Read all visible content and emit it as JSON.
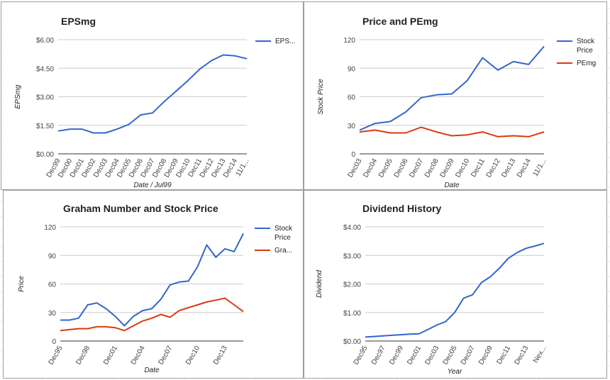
{
  "colors": {
    "blue": "#3366cc",
    "red": "#dc3912",
    "grid": "#cccccc",
    "axis": "#333333"
  },
  "chart_data": [
    {
      "type": "line",
      "title": "EPSmg",
      "xlabel": "Date / Jul99",
      "ylabel": "EPSmg",
      "ylim": [
        0,
        6
      ],
      "y_ticks": [
        "$0.00",
        "$1.50",
        "$3.00",
        "$4.50",
        "$6.00"
      ],
      "categories": [
        "Dec99",
        "Dec00",
        "Dec01",
        "Dec02",
        "Dec03",
        "Dec04",
        "Dec05",
        "Dec06",
        "Dec07",
        "Dec08",
        "Dec09",
        "Dec10",
        "Dec11",
        "Dec12",
        "Dec13",
        "Dec14",
        "11/1..."
      ],
      "x": [
        "Dec99",
        "Dec00",
        "Dec01",
        "Dec02",
        "Dec03",
        "Dec04",
        "Dec05",
        "Dec06",
        "Dec07",
        "Dec08",
        "Dec09",
        "Dec10",
        "Dec11",
        "Dec12",
        "Dec13",
        "Dec14",
        "11/1..."
      ],
      "series": [
        {
          "name": "EPS...",
          "color": "#3366cc",
          "values": [
            1.2,
            1.3,
            1.3,
            1.1,
            1.1,
            1.3,
            1.55,
            2.05,
            2.15,
            2.75,
            3.3,
            3.85,
            4.45,
            4.9,
            5.2,
            5.15,
            5.0
          ]
        }
      ],
      "grid": true,
      "legend": "right"
    },
    {
      "type": "line",
      "title": "Price and PEmg",
      "xlabel": "Date",
      "ylabel": "Stock Price",
      "ylim": [
        0,
        120
      ],
      "y_ticks": [
        "0",
        "30",
        "60",
        "90",
        "120"
      ],
      "categories": [
        "Dec03",
        "Dec04",
        "Dec05",
        "Dec06",
        "Dec07",
        "Dec08",
        "Dec09",
        "Dec10",
        "Dec11",
        "Dec12",
        "Dec13",
        "Dec14",
        "11/1..."
      ],
      "x": [
        "Dec03",
        "Dec04",
        "Dec05",
        "Dec06",
        "Dec07",
        "Dec08",
        "Dec09",
        "Dec10",
        "Dec11",
        "Dec12",
        "Dec13",
        "Dec14",
        "11/1..."
      ],
      "series": [
        {
          "name": "Stock Price",
          "color": "#3366cc",
          "values": [
            25,
            32,
            34,
            44,
            59,
            62,
            63,
            77,
            101,
            88,
            97,
            94,
            113
          ]
        },
        {
          "name": "PEmg",
          "color": "#dc3912",
          "values": [
            23,
            25,
            22,
            22,
            28,
            23,
            19,
            20,
            23,
            18,
            19,
            18,
            23
          ]
        }
      ],
      "grid": true,
      "legend": "right"
    },
    {
      "type": "line",
      "title": "Graham Number and Stock Price",
      "xlabel": "Date",
      "ylabel": "Price",
      "ylim": [
        0,
        120
      ],
      "y_ticks": [
        "0",
        "30",
        "60",
        "90",
        "120"
      ],
      "categories": [
        "Dec95",
        "Dec98",
        "Dec01",
        "Dec04",
        "Dec07",
        "Dec10",
        "Dec13"
      ],
      "x": [
        1995,
        1996,
        1997,
        1998,
        1999,
        2000,
        2001,
        2002,
        2003,
        2004,
        2005,
        2006,
        2007,
        2008,
        2009,
        2010,
        2011,
        2012,
        2013,
        2014,
        2015
      ],
      "series": [
        {
          "name": "Stock Price",
          "color": "#3366cc",
          "values": [
            22,
            22,
            24,
            38,
            40,
            34,
            26,
            16,
            26,
            32,
            34,
            44,
            59,
            62,
            63,
            78,
            101,
            88,
            97,
            94,
            113
          ]
        },
        {
          "name": "Gra...",
          "color": "#dc3912",
          "values": [
            11,
            12,
            13,
            13,
            15,
            15,
            14,
            11,
            16,
            21,
            24,
            28,
            25,
            32,
            35,
            38,
            41,
            43,
            45,
            38,
            31
          ]
        }
      ],
      "grid": true,
      "legend": "right"
    },
    {
      "type": "line",
      "title": "Dividend History",
      "xlabel": "Year",
      "ylabel": "Dividend",
      "ylim": [
        0,
        4
      ],
      "y_ticks": [
        "$0.00",
        "$1.00",
        "$2.00",
        "$3.00",
        "$4.00"
      ],
      "categories": [
        "Dec95",
        "Dec97",
        "Dec99",
        "Dec01",
        "Dec03",
        "Dec05",
        "Dec07",
        "Dec09",
        "Dec11",
        "Dec13",
        "Nex..."
      ],
      "x": [
        1995,
        1996,
        1997,
        1998,
        1999,
        2000,
        2001,
        2002,
        2003,
        2004,
        2005,
        2006,
        2007,
        2008,
        2009,
        2010,
        2011,
        2012,
        2013,
        2014,
        2015
      ],
      "series": [
        {
          "name": "Dividend",
          "color": "#3366cc",
          "values": [
            0.14,
            0.16,
            0.18,
            0.2,
            0.22,
            0.24,
            0.25,
            0.4,
            0.56,
            0.68,
            1.0,
            1.5,
            1.62,
            2.05,
            2.25,
            2.55,
            2.9,
            3.1,
            3.25,
            3.33,
            3.42
          ]
        }
      ],
      "grid": true,
      "legend": "none"
    }
  ]
}
